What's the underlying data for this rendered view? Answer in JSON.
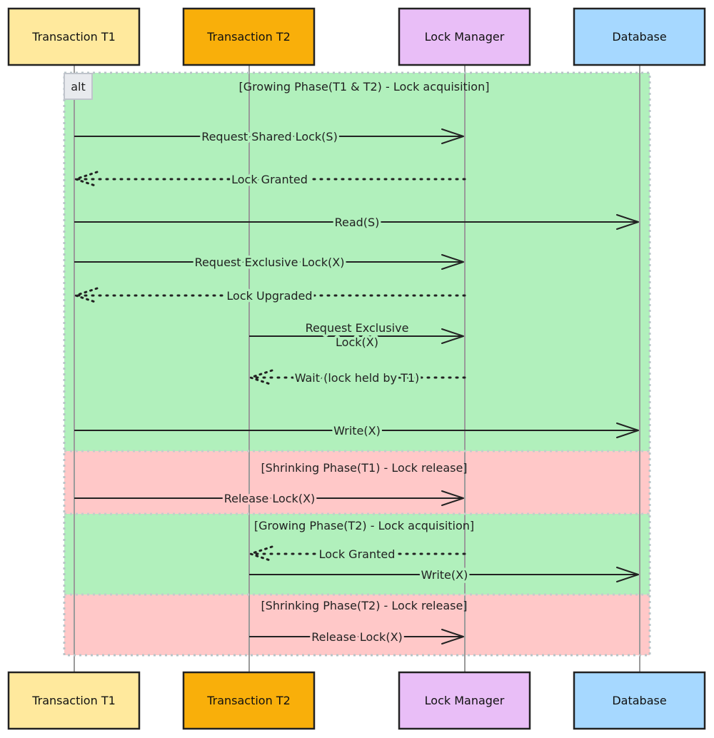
{
  "diagram": {
    "type": "sequence",
    "actors": [
      {
        "id": "T1",
        "label": "Transaction T1",
        "color": "#FFE99D"
      },
      {
        "id": "T2",
        "label": "Transaction T2",
        "color": "#F9AF0A"
      },
      {
        "id": "LM",
        "label": "Lock Manager",
        "color": "#E9BEF7"
      },
      {
        "id": "DB",
        "label": "Database",
        "color": "#A6D8FF"
      }
    ],
    "fragment": {
      "kind": "alt",
      "sections": [
        {
          "label": "[Growing Phase(T1 & T2) - Lock acquisition]",
          "color": "#B1F0BC"
        },
        {
          "label": "[Shrinking Phase(T1) - Lock release]",
          "color": "#FFC8C8"
        },
        {
          "label": "[Growing Phase(T2) - Lock acquisition]",
          "color": "#B1F0BC"
        },
        {
          "label": "[Shrinking Phase(T2) - Lock release]",
          "color": "#FFC8C8"
        }
      ]
    },
    "messages": [
      {
        "from": "T1",
        "to": "LM",
        "label": "Request Shared Lock(S)",
        "style": "solid",
        "section": 0
      },
      {
        "from": "LM",
        "to": "T1",
        "label": "Lock Granted",
        "style": "dotted",
        "section": 0
      },
      {
        "from": "T1",
        "to": "DB",
        "label": "Read(S)",
        "style": "solid",
        "section": 0
      },
      {
        "from": "T1",
        "to": "LM",
        "label": "Request Exclusive Lock(X)",
        "style": "solid",
        "section": 0
      },
      {
        "from": "LM",
        "to": "T1",
        "label": "Lock Upgraded",
        "style": "dotted",
        "section": 0
      },
      {
        "from": "T2",
        "to": "LM",
        "label": "Request Exclusive Lock(X)",
        "style": "solid",
        "section": 0
      },
      {
        "from": "LM",
        "to": "T2",
        "label": "Wait (lock held by T1)",
        "style": "dotted",
        "section": 0
      },
      {
        "from": "T1",
        "to": "DB",
        "label": "Write(X)",
        "style": "solid",
        "section": 0
      },
      {
        "from": "T1",
        "to": "LM",
        "label": "Release Lock(X)",
        "style": "solid",
        "section": 1
      },
      {
        "from": "LM",
        "to": "T2",
        "label": "Lock Granted",
        "style": "dotted",
        "section": 2
      },
      {
        "from": "T2",
        "to": "DB",
        "label": "Write(X)",
        "style": "solid",
        "section": 2
      },
      {
        "from": "T2",
        "to": "LM",
        "label": "Release Lock(X)",
        "style": "solid",
        "section": 3
      }
    ]
  }
}
